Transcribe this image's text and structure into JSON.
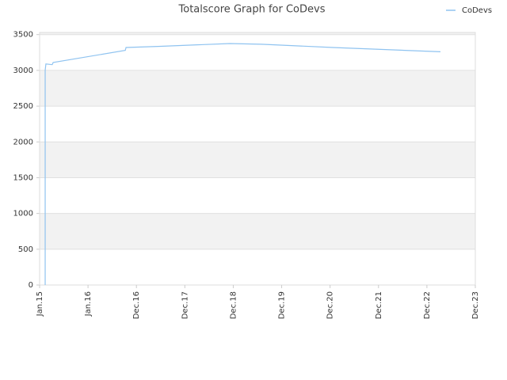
{
  "chart_data": {
    "type": "line",
    "title": "Totalscore Graph for CoDevs",
    "x": [
      0.115,
      0.115,
      0.13,
      0.26,
      0.28,
      1.77,
      1.785,
      2.45,
      3.93,
      4.58,
      6.06,
      8.28
    ],
    "series": [
      {
        "name": "CoDevs",
        "color": "#8fc3f0",
        "values": [
          0,
          3000,
          3090,
          3080,
          3110,
          3280,
          3320,
          3335,
          3375,
          3365,
          3320,
          3260
        ]
      }
    ],
    "xlim": [
      0,
      9
    ],
    "xticks": [
      {
        "value": 0,
        "label": "Jan.15"
      },
      {
        "value": 1,
        "label": "Jan.16"
      },
      {
        "value": 2,
        "label": "Dec.16"
      },
      {
        "value": 3,
        "label": "Dec.17"
      },
      {
        "value": 4,
        "label": "Dec.18"
      },
      {
        "value": 5,
        "label": "Dec.19"
      },
      {
        "value": 6,
        "label": "Dec.20"
      },
      {
        "value": 7,
        "label": "Dec.21"
      },
      {
        "value": 8,
        "label": "Dec.22"
      },
      {
        "value": 9,
        "label": "Dec.23"
      }
    ],
    "ylim": [
      0,
      3530
    ],
    "yticks": [
      0,
      500,
      1000,
      1500,
      2000,
      2500,
      3000,
      3500
    ],
    "grid": true,
    "legend": "top-right"
  }
}
